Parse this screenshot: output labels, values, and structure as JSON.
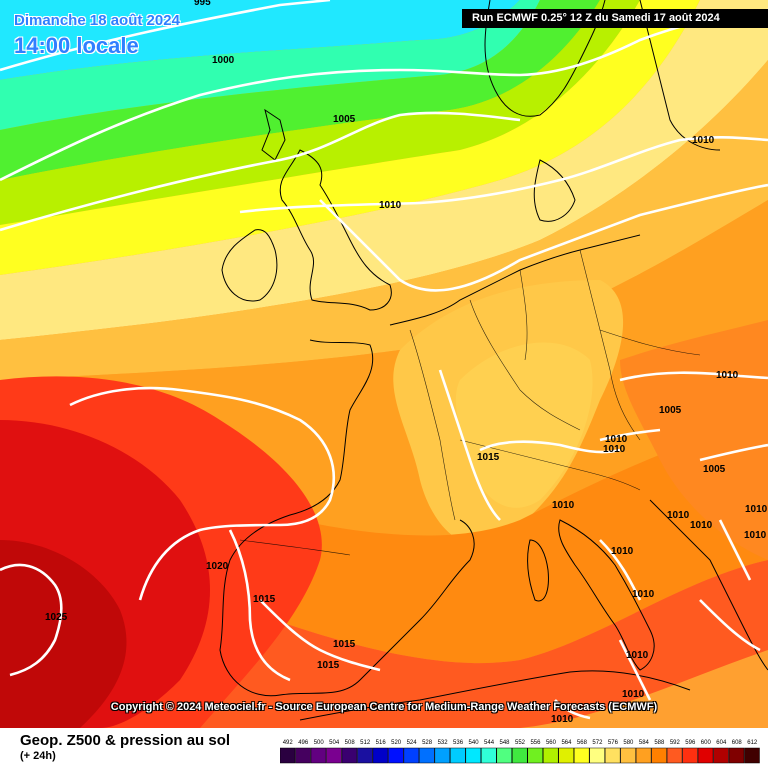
{
  "header": {
    "date_line": "Dimanche 18 août 2024",
    "time_line": "14:00 locale",
    "run_info": "Run ECMWF 0.25° 12 Z du Samedi 17 août 2024"
  },
  "copyright": "Copyright © 2024 Meteociel.fr - Source European Centre for Medium-Range Weather Forecasts (ECMWF)",
  "footer": {
    "title": "Geop. Z500 & pression au sol",
    "subtitle": "(+ 24h)"
  },
  "legend": {
    "labels": [
      "492",
      "496",
      "500",
      "504",
      "508",
      "512",
      "516",
      "520",
      "524",
      "528",
      "532",
      "536",
      "540",
      "544",
      "548",
      "552",
      "556",
      "560",
      "564",
      "568",
      "572",
      "576",
      "580",
      "584",
      "588",
      "592",
      "596",
      "600",
      "604",
      "608",
      "612"
    ],
    "colors": [
      "#2a0040",
      "#45005f",
      "#620080",
      "#7a0090",
      "#3a0070",
      "#1a10a0",
      "#0000c8",
      "#0010ff",
      "#0040ff",
      "#0070ff",
      "#00a0ff",
      "#00ccff",
      "#00e8ff",
      "#30ffd8",
      "#50ff80",
      "#40e840",
      "#70f020",
      "#b0f000",
      "#e0f000",
      "#ffff20",
      "#ffff80",
      "#ffe060",
      "#ffc040",
      "#ffa020",
      "#ff8000",
      "#ff5a20",
      "#ff3010",
      "#e00000",
      "#b00000",
      "#800000",
      "#400000"
    ]
  },
  "isobar_labels": [
    "995",
    "1000",
    "1005",
    "1010",
    "1010",
    "1010",
    "1015",
    "1010",
    "1010",
    "1010",
    "1005",
    "1005",
    "1010",
    "1010",
    "1010",
    "1010",
    "1015",
    "1020",
    "1025",
    "1015",
    "1015",
    "1010",
    "1010",
    "1010",
    "1010",
    "1010"
  ],
  "colors": {
    "title_blue": "#2f7fff",
    "isobar": "#ffffff",
    "coast": "#000000"
  }
}
